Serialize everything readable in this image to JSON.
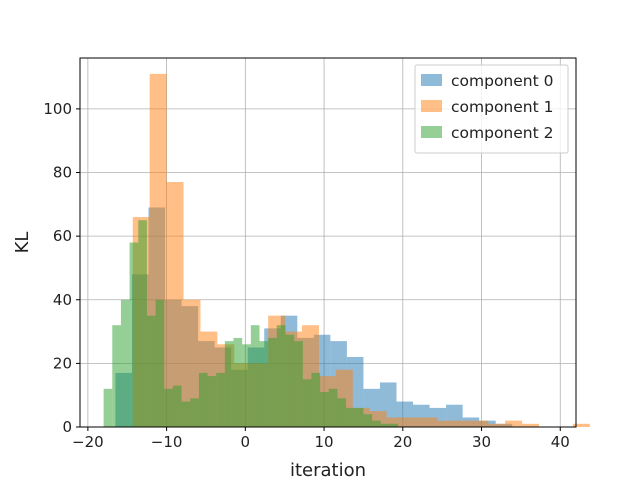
{
  "chart_data": {
    "type": "histogram",
    "xlabel": "iteration",
    "ylabel": "KL",
    "xlim": [
      -21,
      42
    ],
    "ylim": [
      0,
      116
    ],
    "x_ticks": [
      -20,
      -10,
      0,
      10,
      20,
      30,
      40
    ],
    "y_ticks": [
      0,
      20,
      40,
      60,
      80,
      100
    ],
    "x_tick_labels": [
      "−20",
      "−10",
      "0",
      "10",
      "20",
      "30",
      "40"
    ],
    "y_tick_labels": [
      "0",
      "20",
      "40",
      "60",
      "80",
      "100"
    ],
    "grid": true,
    "legend_position": "upper right",
    "bar_alpha": 0.5,
    "series": [
      {
        "name": "component 0",
        "color": "#1f77b4",
        "bin_start": -16.5,
        "bin_width": 2.1,
        "values": [
          17,
          48,
          69,
          40,
          38,
          27,
          25,
          18,
          25,
          31,
          35,
          28,
          29,
          27,
          22,
          12,
          14,
          8,
          7,
          6,
          7,
          3,
          2,
          1
        ]
      },
      {
        "name": "component 1",
        "color": "#ff7f0e",
        "bin_start": -14.3,
        "bin_width": 2.15,
        "values": [
          66,
          111,
          77,
          40,
          30,
          26,
          20,
          20,
          35,
          30,
          32,
          16,
          18,
          6,
          5,
          3,
          3,
          3,
          2,
          2,
          2,
          1,
          2,
          1,
          0,
          0,
          1
        ]
      },
      {
        "name": "component 2",
        "color": "#2ca02c",
        "bin_start": -18.0,
        "bin_width": 1.1,
        "values": [
          12,
          32,
          40,
          58,
          65,
          35,
          40,
          12,
          13,
          8,
          9,
          17,
          16,
          17,
          27,
          28,
          26,
          32,
          27,
          28,
          32,
          29,
          27,
          15,
          17,
          11,
          12,
          9,
          6,
          6,
          4,
          2,
          1,
          1
        ]
      }
    ]
  }
}
